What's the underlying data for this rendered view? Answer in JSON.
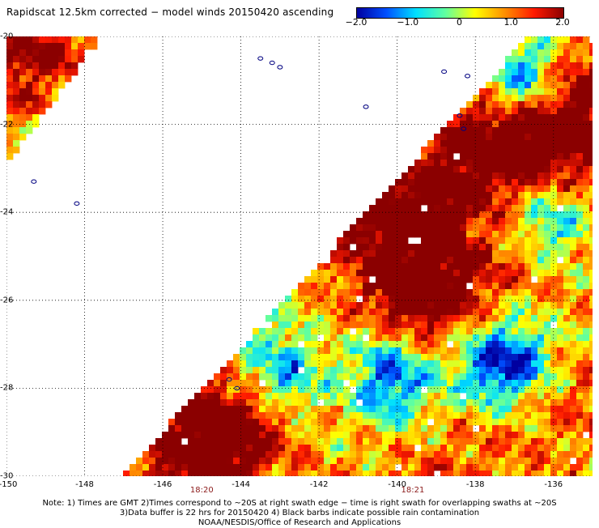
{
  "title": "Rapidscat 12.5km corrected − model winds 20150420 ascending",
  "colorbar": {
    "ticks": [
      {
        "value": -2.0,
        "label": "−2.0"
      },
      {
        "value": -1.0,
        "label": "−1.0"
      },
      {
        "value": 0,
        "label": "0"
      },
      {
        "value": 1.0,
        "label": "1.0"
      },
      {
        "value": 2.0,
        "label": "2.0"
      }
    ],
    "range": [
      -2.0,
      2.0
    ],
    "colors": [
      "#0000a0",
      "#0050ff",
      "#00e0ff",
      "#60ffa0",
      "#ffff00",
      "#ff9000",
      "#ff1a00",
      "#8b0000"
    ]
  },
  "map": {
    "lon_range": [
      -150,
      -135
    ],
    "lat_range": [
      -30,
      -20
    ],
    "x_ticks": [
      {
        "value": -150,
        "label": "-150"
      },
      {
        "value": -148,
        "label": "-148"
      },
      {
        "value": -146,
        "label": "-146"
      },
      {
        "value": -144,
        "label": "-144"
      },
      {
        "value": -142,
        "label": "-142"
      },
      {
        "value": -140,
        "label": "-140"
      },
      {
        "value": -138,
        "label": "-138"
      },
      {
        "value": -136,
        "label": "-136"
      }
    ],
    "y_ticks": [
      {
        "value": -20,
        "label": "-20"
      },
      {
        "value": -22,
        "label": "-22"
      },
      {
        "value": -24,
        "label": "-24"
      },
      {
        "value": -26,
        "label": "-26"
      },
      {
        "value": -28,
        "label": "-28"
      },
      {
        "value": -30,
        "label": "-30"
      }
    ],
    "time_labels": [
      {
        "lon": -145,
        "label": "18:20"
      },
      {
        "lon": -139.6,
        "label": "18:21"
      }
    ],
    "grid": "dotted",
    "hot_spots": [
      {
        "lon": -144.6,
        "lat": -29.1,
        "value": 2.0
      },
      {
        "lon": -139.7,
        "lat": -24.4,
        "value": 2.0
      },
      {
        "lon": -139.4,
        "lat": -26.0,
        "value": 1.5
      },
      {
        "lon": -137.2,
        "lat": -22.6,
        "value": 2.0
      },
      {
        "lon": -135.3,
        "lat": -22.0,
        "value": 1.8
      },
      {
        "lon": -149.5,
        "lat": -20.6,
        "value": 1.2
      }
    ],
    "cold_spots": [
      {
        "lon": -140.2,
        "lat": -27.6,
        "value": -0.8
      },
      {
        "lon": -137.3,
        "lat": -27.4,
        "value": -0.8
      },
      {
        "lon": -142.9,
        "lat": -27.7,
        "value": -0.4
      },
      {
        "lon": -136.8,
        "lat": -21.0,
        "value": -0.8
      },
      {
        "lon": -136.0,
        "lat": -24.2,
        "value": -0.3
      }
    ],
    "islands": [
      {
        "lon": -143.5,
        "lat": -20.5
      },
      {
        "lon": -143.2,
        "lat": -20.6
      },
      {
        "lon": -143.0,
        "lat": -20.7
      },
      {
        "lon": -138.8,
        "lat": -20.8
      },
      {
        "lon": -138.2,
        "lat": -20.9
      },
      {
        "lon": -140.8,
        "lat": -21.6
      },
      {
        "lon": -138.4,
        "lat": -21.8
      },
      {
        "lon": -138.3,
        "lat": -22.1
      },
      {
        "lon": -149.3,
        "lat": -23.3
      },
      {
        "lon": -148.2,
        "lat": -23.8
      },
      {
        "lon": -144.3,
        "lat": -27.8
      },
      {
        "lon": -144.1,
        "lat": -28.0
      }
    ]
  },
  "notes": [
    "Note: 1) Times are GMT 2)Times correspond to ~20S at right swath edge − time is right swath for overlapping swaths at ~20S",
    "3)Data buffer is 22 hrs for 20150420 4) Black barbs indicate possible rain contamination",
    "NOAA/NESDIS/Office of Research and Applications"
  ]
}
